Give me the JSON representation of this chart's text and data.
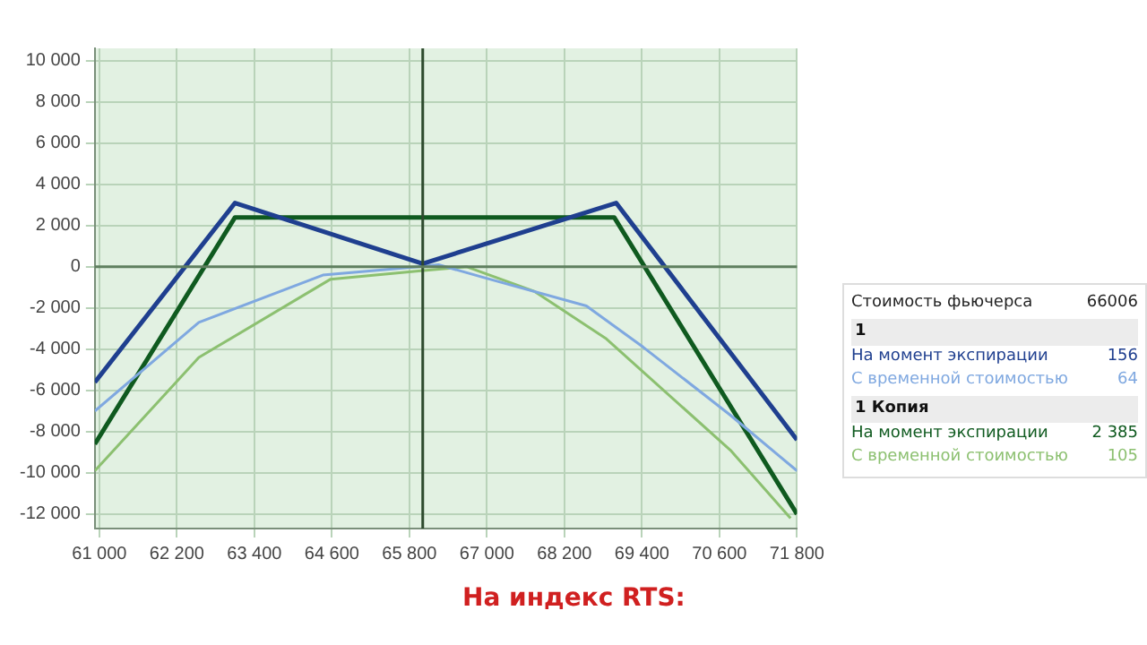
{
  "chart_data": {
    "type": "line",
    "xlim": [
      60930,
      71800
    ],
    "xticks": [
      {
        "value": 61000,
        "label": "61 000"
      },
      {
        "value": 62200,
        "label": "62 200"
      },
      {
        "value": 63400,
        "label": "63 400"
      },
      {
        "value": 64600,
        "label": "64 600"
      },
      {
        "value": 65800,
        "label": "65 800"
      },
      {
        "value": 67000,
        "label": "67 000"
      },
      {
        "value": 68200,
        "label": "68 200"
      },
      {
        "value": 69400,
        "label": "69 400"
      },
      {
        "value": 70600,
        "label": "70 600"
      },
      {
        "value": 71800,
        "label": "71 800"
      }
    ],
    "ylim": [
      -12700,
      10600
    ],
    "yticks": [
      {
        "value": -12000,
        "label": "-12 000"
      },
      {
        "value": -10000,
        "label": "-10 000"
      },
      {
        "value": -8000,
        "label": "-8 000"
      },
      {
        "value": -6000,
        "label": "-6 000"
      },
      {
        "value": -4000,
        "label": "-4 000"
      },
      {
        "value": -2000,
        "label": "-2 000"
      },
      0,
      {
        "value": 2000,
        "label": "2 000"
      },
      {
        "value": 4000,
        "label": "4 000"
      },
      {
        "value": 6000,
        "label": "6 000"
      },
      {
        "value": 8000,
        "label": "8 000"
      },
      {
        "value": 10000,
        "label": "10 000"
      }
    ],
    "grid": true,
    "marker": "none",
    "line_style": "solid",
    "ref_lines": [
      {
        "axis": "x",
        "value": 66006,
        "color": "#2e4a2e"
      },
      {
        "axis": "y",
        "value": 0,
        "color": "#5f7f5f"
      }
    ],
    "series": [
      {
        "name": "На момент экспирации",
        "color": "#1f3f8f",
        "x": [
          60930,
          63100,
          66006,
          69000,
          71800
        ],
        "values": [
          -5600,
          3100,
          150,
          3100,
          -8400
        ]
      },
      {
        "name": "С временной стоимостью",
        "color": "#7fa8e0",
        "x": [
          60930,
          62540,
          64460,
          65940,
          66250,
          66930,
          68540,
          69420,
          70770,
          71800
        ],
        "values": [
          -7000,
          -2700,
          -400,
          0,
          100,
          -500,
          -1900,
          -3900,
          -7200,
          -9900
        ]
      },
      {
        "name": "На момент экспирации",
        "color": "#0f5a1f",
        "x": [
          60930,
          63100,
          68970,
          71800
        ],
        "values": [
          -8600,
          2400,
          2400,
          -12000
        ]
      },
      {
        "name": "С временной стоимостью",
        "color": "#8cc070",
        "x": [
          60930,
          62540,
          64580,
          65940,
          66690,
          67740,
          68850,
          70770,
          71700
        ],
        "values": [
          -9900,
          -4400,
          -600,
          -200,
          0,
          -1200,
          -3500,
          -8900,
          -12200
        ]
      }
    ],
    "annotations": [
      "Стоимость фьючерса",
      "66006",
      "1",
      "156",
      "64",
      "1 Копия",
      "2 385",
      "105",
      "На индекс RTS:"
    ]
  }
}
